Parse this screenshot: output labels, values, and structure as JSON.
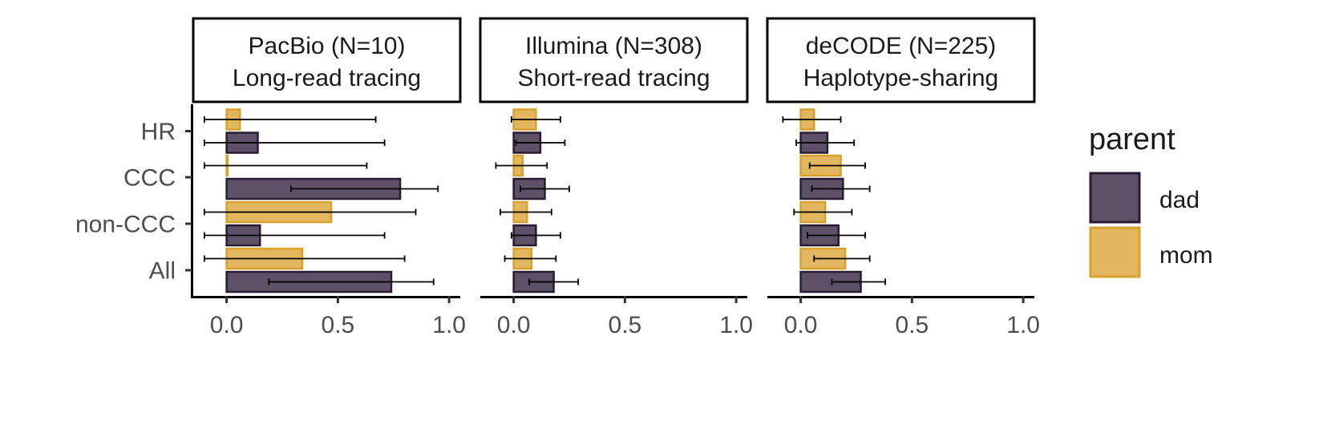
{
  "chart_data": {
    "type": "bar",
    "orientation": "horizontal",
    "categories": [
      "HR",
      "CCC",
      "non-CCC",
      "All"
    ],
    "xlim": [
      -0.15,
      1.05
    ],
    "xticks": [
      0.0,
      0.5,
      1.0
    ],
    "xtick_labels": [
      "0.0",
      "0.5",
      "1.0"
    ],
    "grid": false,
    "legend": {
      "title": "parent",
      "position": "right",
      "entries": [
        {
          "key": "dad",
          "label": "dad",
          "fill": "#5c5168",
          "stroke": "#281c33"
        },
        {
          "key": "mom",
          "label": "mom",
          "fill": "#e3b75f",
          "stroke": "#d8a02d"
        }
      ]
    },
    "panels": [
      {
        "title_line1": "PacBio (N=10)",
        "title_line2": "Long-read tracing",
        "show_y_axis": true,
        "series": [
          {
            "name": "mom",
            "values": [
              0.06,
              0.0,
              0.47,
              0.34
            ],
            "lower": [
              -0.1,
              -0.1,
              -0.1,
              -0.1
            ],
            "upper": [
              0.67,
              0.63,
              0.85,
              0.8
            ]
          },
          {
            "name": "dad",
            "values": [
              0.14,
              0.78,
              0.15,
              0.74
            ],
            "lower": [
              -0.1,
              0.29,
              -0.1,
              0.19
            ],
            "upper": [
              0.71,
              0.95,
              0.71,
              0.93
            ]
          }
        ]
      },
      {
        "title_line1": "Illumina (N=308)",
        "title_line2": "Short-read tracing",
        "show_y_axis": false,
        "series": [
          {
            "name": "mom",
            "values": [
              0.1,
              0.04,
              0.06,
              0.08
            ],
            "lower": [
              -0.01,
              -0.08,
              -0.06,
              -0.04
            ],
            "upper": [
              0.21,
              0.15,
              0.17,
              0.19
            ]
          },
          {
            "name": "dad",
            "values": [
              0.12,
              0.14,
              0.1,
              0.18
            ],
            "lower": [
              0.01,
              0.03,
              -0.01,
              0.07
            ],
            "upper": [
              0.23,
              0.25,
              0.21,
              0.29
            ]
          }
        ]
      },
      {
        "title_line1": "deCODE (N=225)",
        "title_line2": "Haplotype-sharing",
        "show_y_axis": false,
        "series": [
          {
            "name": "mom",
            "values": [
              0.06,
              0.18,
              0.11,
              0.2
            ],
            "lower": [
              -0.08,
              0.04,
              -0.03,
              0.06
            ],
            "upper": [
              0.18,
              0.29,
              0.23,
              0.31
            ]
          },
          {
            "name": "dad",
            "values": [
              0.12,
              0.19,
              0.17,
              0.27
            ],
            "lower": [
              -0.02,
              0.05,
              0.03,
              0.14
            ],
            "upper": [
              0.24,
              0.31,
              0.29,
              0.38
            ]
          }
        ]
      }
    ]
  }
}
